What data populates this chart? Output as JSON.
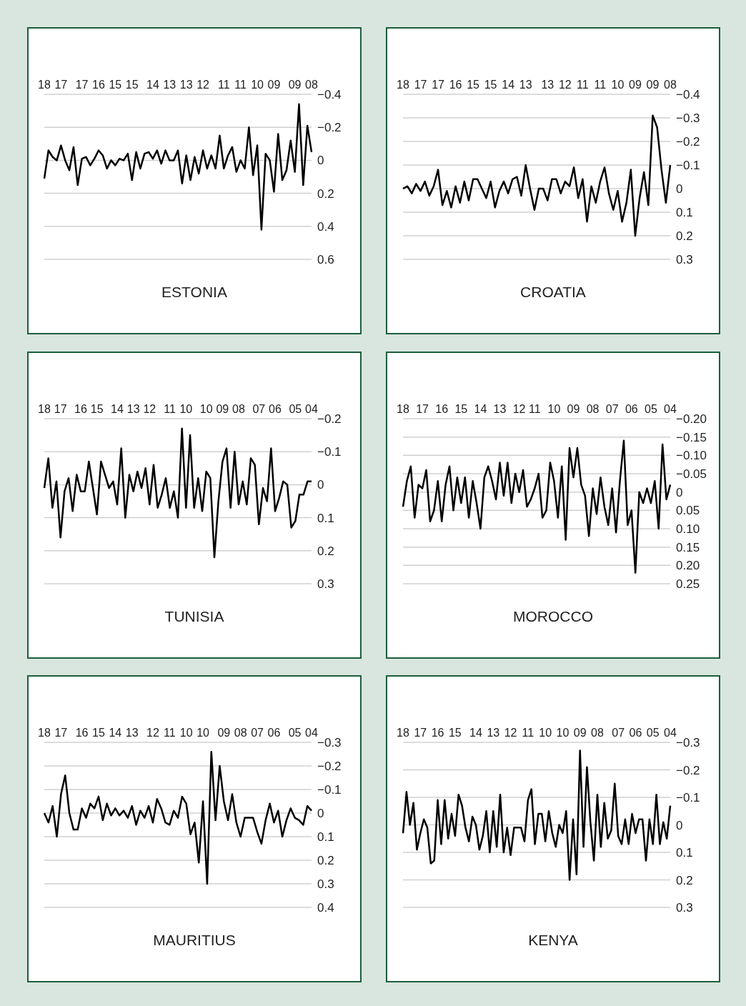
{
  "chart_data": [
    {
      "type": "line",
      "title": "ESTONIA",
      "grid": "y",
      "ylim": [
        0.6,
        -0.4
      ],
      "yticks": [
        {
          "value": -0.4,
          "label": "−0.4"
        },
        {
          "value": -0.2,
          "label": "−0.2"
        },
        0,
        0.2,
        0.4,
        0.6
      ],
      "categories": [
        "18",
        null,
        null,
        null,
        "17",
        null,
        null,
        null,
        null,
        "17",
        null,
        null,
        null,
        "16",
        null,
        null,
        null,
        "15",
        null,
        null,
        null,
        "15",
        null,
        null,
        null,
        null,
        "14",
        null,
        null,
        null,
        "13",
        null,
        null,
        null,
        "13",
        null,
        null,
        null,
        "12",
        null,
        null,
        null,
        null,
        "11",
        null,
        null,
        null,
        "11",
        null,
        null,
        null,
        "10",
        null,
        null,
        null,
        "09",
        null,
        null,
        null,
        null,
        "09",
        null,
        null,
        null,
        "08"
      ],
      "series": [
        {
          "color": "#000000",
          "values": [
            0.11,
            -0.06,
            -0.02,
            0,
            -0.09,
            0,
            0.06,
            -0.08,
            0.15,
            -0.01,
            -0.02,
            0.03,
            -0.01,
            -0.06,
            -0.03,
            0.05,
            0,
            0.03,
            -0.01,
            0,
            -0.04,
            0.12,
            -0.05,
            0.05,
            -0.04,
            -0.05,
            -0.01,
            -0.06,
            0.02,
            -0.06,
            0,
            0,
            -0.06,
            0.14,
            -0.03,
            0.12,
            -0.02,
            0.08,
            -0.06,
            0.05,
            -0.03,
            0.05,
            -0.15,
            0.05,
            -0.03,
            -0.08,
            0.07,
            0,
            0.05,
            -0.2,
            0.09,
            -0.09,
            0.42,
            -0.04,
            0,
            0.19,
            -0.16,
            0.12,
            0.06,
            -0.12,
            0.07,
            -0.34,
            0.15,
            -0.21,
            -0.05
          ]
        }
      ]
    },
    {
      "type": "line",
      "title": "CROATIA",
      "grid": "y",
      "ylim": [
        0.3,
        -0.4
      ],
      "yticks": [
        {
          "value": -0.4,
          "label": "−0.4"
        },
        {
          "value": -0.3,
          "label": "−0.3"
        },
        {
          "value": -0.2,
          "label": "−0.2"
        },
        {
          "value": -0.1,
          "label": "−0.1"
        },
        0,
        0.1,
        0.2,
        0.3
      ],
      "categories": [
        "18",
        null,
        null,
        null,
        "17",
        null,
        null,
        null,
        "17",
        null,
        null,
        null,
        "16",
        null,
        null,
        null,
        "15",
        null,
        null,
        null,
        "15",
        null,
        null,
        null,
        "14",
        null,
        null,
        null,
        "13",
        null,
        null,
        null,
        null,
        "13",
        null,
        null,
        null,
        "12",
        null,
        null,
        null,
        "11",
        null,
        null,
        null,
        "11",
        null,
        null,
        null,
        "10",
        null,
        null,
        null,
        "09",
        null,
        null,
        null,
        "09",
        null,
        null,
        null,
        "08"
      ],
      "series": [
        {
          "color": "#000000",
          "values": [
            0,
            -0.01,
            0.02,
            -0.02,
            0.01,
            -0.03,
            0.03,
            -0.01,
            -0.08,
            0.07,
            0.01,
            0.08,
            -0.01,
            0.06,
            -0.03,
            0.05,
            -0.04,
            -0.04,
            0,
            0.04,
            -0.03,
            0.08,
            0.01,
            -0.03,
            0.02,
            -0.04,
            -0.05,
            0.03,
            -0.1,
            0,
            0.09,
            0,
            0,
            0.05,
            -0.04,
            -0.04,
            0.02,
            -0.03,
            -0.01,
            -0.09,
            0.04,
            -0.04,
            0.14,
            -0.01,
            0.06,
            -0.03,
            -0.09,
            0.02,
            0.09,
            0.01,
            0.14,
            0.06,
            -0.08,
            0.2,
            0.04,
            -0.07,
            0.07,
            -0.31,
            -0.26,
            -0.08,
            0.06,
            -0.1
          ]
        }
      ]
    },
    {
      "type": "line",
      "title": "TUNISIA",
      "grid": "y",
      "ylim": [
        0.3,
        -0.2
      ],
      "yticks": [
        {
          "value": -0.2,
          "label": "−0.2"
        },
        {
          "value": -0.1,
          "label": "−0.1"
        },
        0,
        0.1,
        0.2,
        0.3
      ],
      "categories": [
        "18",
        null,
        null,
        null,
        "17",
        null,
        null,
        null,
        null,
        "16",
        null,
        null,
        null,
        "15",
        null,
        null,
        null,
        null,
        "14",
        null,
        null,
        null,
        "13",
        null,
        null,
        null,
        "12",
        null,
        null,
        null,
        null,
        "11",
        null,
        null,
        null,
        "10",
        null,
        null,
        null,
        null,
        "10",
        null,
        null,
        null,
        "09",
        null,
        null,
        null,
        "08",
        null,
        null,
        null,
        null,
        "07",
        null,
        null,
        null,
        "06",
        null,
        null,
        null,
        null,
        "05",
        null,
        null,
        null,
        "04"
      ],
      "series": [
        {
          "color": "#000000",
          "values": [
            0.01,
            -0.08,
            0.07,
            -0.01,
            0.16,
            0.02,
            -0.02,
            0.08,
            -0.03,
            0.02,
            0.02,
            -0.07,
            0.01,
            0.09,
            -0.07,
            -0.03,
            0.01,
            -0.01,
            0.06,
            -0.11,
            0.1,
            -0.03,
            0.02,
            -0.04,
            0.01,
            -0.05,
            0.06,
            -0.06,
            0.07,
            0.03,
            -0.02,
            0.07,
            0.02,
            0.1,
            -0.17,
            0.07,
            -0.15,
            0.07,
            -0.02,
            0.08,
            -0.04,
            -0.02,
            0.22,
            0.05,
            -0.07,
            -0.11,
            0.07,
            -0.1,
            0.06,
            -0.01,
            0.06,
            -0.08,
            -0.06,
            0.12,
            0.01,
            0.05,
            -0.11,
            0.08,
            0.04,
            -0.01,
            0,
            0.13,
            0.11,
            0.03,
            0.03,
            -0.01,
            -0.01
          ]
        }
      ]
    },
    {
      "type": "line",
      "title": "MOROCCO",
      "grid": "y",
      "ylim": [
        0.25,
        -0.2
      ],
      "yticks": [
        {
          "value": -0.2,
          "label": "−0.20"
        },
        {
          "value": -0.15,
          "label": "−0.15"
        },
        {
          "value": -0.1,
          "label": "−0.10"
        },
        {
          "value": -0.05,
          "label": "−0.05"
        },
        0,
        0.05,
        {
          "value": 0.1,
          "label": "0.10"
        },
        0.15,
        {
          "value": 0.2,
          "label": "0.20"
        },
        0.25
      ],
      "categories": [
        "18",
        null,
        null,
        null,
        null,
        "17",
        null,
        null,
        null,
        null,
        "16",
        null,
        null,
        null,
        null,
        "15",
        null,
        null,
        null,
        null,
        "14",
        null,
        null,
        null,
        null,
        "13",
        null,
        null,
        null,
        null,
        "12",
        null,
        null,
        null,
        "11",
        null,
        null,
        null,
        null,
        "10",
        null,
        null,
        null,
        null,
        "09",
        null,
        null,
        null,
        null,
        "08",
        null,
        null,
        null,
        null,
        "07",
        null,
        null,
        null,
        null,
        "06",
        null,
        null,
        null,
        null,
        "05",
        null,
        null,
        null,
        null,
        "04"
      ],
      "series": [
        {
          "color": "#000000",
          "values": [
            0.04,
            -0.03,
            -0.07,
            0.07,
            -0.02,
            -0.01,
            -0.06,
            0.08,
            0.05,
            -0.03,
            0.08,
            -0.02,
            -0.07,
            0.05,
            -0.04,
            0.03,
            -0.04,
            0.07,
            -0.03,
            0.03,
            0.1,
            -0.04,
            -0.07,
            -0.03,
            0.02,
            -0.08,
            0.01,
            -0.08,
            0.03,
            -0.05,
            0,
            -0.06,
            0.04,
            0.02,
            -0.01,
            -0.05,
            0.07,
            0.05,
            -0.08,
            -0.03,
            0.07,
            -0.07,
            0.13,
            -0.12,
            -0.04,
            -0.12,
            -0.02,
            0.01,
            0.12,
            -0.01,
            0.06,
            -0.04,
            0.04,
            0.09,
            -0.01,
            0.11,
            -0.03,
            -0.14,
            0.09,
            0.05,
            0.22,
            0,
            0.03,
            -0.01,
            0.03,
            -0.03,
            0.1,
            -0.13,
            0.02,
            -0.02
          ]
        }
      ]
    },
    {
      "type": "line",
      "title": "MAURITIUS",
      "grid": "y",
      "ylim": [
        0.4,
        -0.3
      ],
      "yticks": [
        {
          "value": -0.3,
          "label": "−0.3"
        },
        {
          "value": -0.2,
          "label": "−0.2"
        },
        {
          "value": -0.1,
          "label": "−0.1"
        },
        0,
        0.1,
        0.2,
        0.3,
        0.4
      ],
      "categories": [
        "18",
        null,
        null,
        null,
        "17",
        null,
        null,
        null,
        null,
        "16",
        null,
        null,
        null,
        "15",
        null,
        null,
        null,
        "14",
        null,
        null,
        null,
        "13",
        null,
        null,
        null,
        null,
        "12",
        null,
        null,
        null,
        "11",
        null,
        null,
        null,
        "10",
        null,
        null,
        null,
        "10",
        null,
        null,
        null,
        null,
        "09",
        null,
        null,
        null,
        "08",
        null,
        null,
        null,
        "07",
        null,
        null,
        null,
        "06",
        null,
        null,
        null,
        null,
        "05",
        null,
        null,
        null,
        "04"
      ],
      "series": [
        {
          "color": "#000000",
          "values": [
            0,
            0.04,
            -0.03,
            0.1,
            -0.08,
            -0.16,
            0,
            0.07,
            0.07,
            -0.02,
            0.02,
            -0.04,
            -0.02,
            -0.07,
            0.03,
            -0.04,
            0.01,
            -0.02,
            0.01,
            -0.01,
            0.02,
            -0.03,
            0.05,
            -0.01,
            0.02,
            -0.03,
            0.04,
            -0.06,
            -0.02,
            0.04,
            0.05,
            -0.01,
            0.02,
            -0.07,
            -0.04,
            0.09,
            0.04,
            0.21,
            -0.05,
            0.3,
            -0.26,
            0.03,
            -0.2,
            -0.05,
            0.03,
            -0.08,
            0.04,
            0.1,
            0.02,
            0.02,
            0.02,
            0.08,
            0.13,
            0.03,
            -0.04,
            0.04,
            -0.01,
            0.1,
            0.03,
            -0.02,
            0.02,
            0.03,
            0.05,
            -0.03,
            -0.01
          ]
        }
      ]
    },
    {
      "type": "line",
      "title": "KENYA",
      "grid": "y",
      "ylim": [
        0.3,
        -0.3
      ],
      "yticks": [
        {
          "value": -0.3,
          "label": "−0.3"
        },
        {
          "value": -0.2,
          "label": "−0.2"
        },
        {
          "value": -0.1,
          "label": "−0.1"
        },
        0,
        0.1,
        0.2,
        0.3
      ],
      "categories": [
        "18",
        null,
        null,
        null,
        null,
        "17",
        null,
        null,
        null,
        null,
        "16",
        null,
        null,
        null,
        null,
        "15",
        null,
        null,
        null,
        null,
        null,
        "14",
        null,
        null,
        null,
        null,
        "13",
        null,
        null,
        null,
        null,
        "12",
        null,
        null,
        null,
        null,
        "11",
        null,
        null,
        null,
        null,
        "10",
        null,
        null,
        null,
        null,
        "10",
        null,
        null,
        null,
        null,
        "09",
        null,
        null,
        null,
        null,
        "08",
        null,
        null,
        null,
        null,
        null,
        "07",
        null,
        null,
        null,
        null,
        "06",
        null,
        null,
        null,
        null,
        "05",
        null,
        null,
        null,
        null,
        "04"
      ],
      "series": [
        {
          "color": "#000000",
          "values": [
            0.03,
            -0.12,
            0,
            -0.08,
            0.09,
            0.03,
            -0.02,
            0.01,
            0.14,
            0.13,
            -0.09,
            0.07,
            -0.09,
            0.05,
            -0.04,
            0.04,
            -0.11,
            -0.07,
            0.01,
            0.06,
            -0.03,
            0,
            0.09,
            0.04,
            -0.05,
            0.1,
            -0.05,
            0.08,
            -0.11,
            0.1,
            0.01,
            0.11,
            0.01,
            0.01,
            0.01,
            0.06,
            -0.09,
            -0.13,
            0.07,
            -0.04,
            -0.04,
            0.06,
            -0.05,
            0.03,
            0.08,
            0,
            0.03,
            -0.05,
            0.2,
            -0.02,
            0.18,
            -0.27,
            0.08,
            -0.21,
            -0.01,
            0.13,
            -0.11,
            0.08,
            -0.08,
            0.05,
            0.02,
            -0.15,
            0.04,
            0.07,
            -0.02,
            0.07,
            -0.04,
            0.03,
            -0.02,
            -0.02,
            0.13,
            -0.02,
            0.07,
            -0.11,
            0.07,
            -0.01,
            0.05,
            -0.07
          ]
        }
      ]
    }
  ]
}
